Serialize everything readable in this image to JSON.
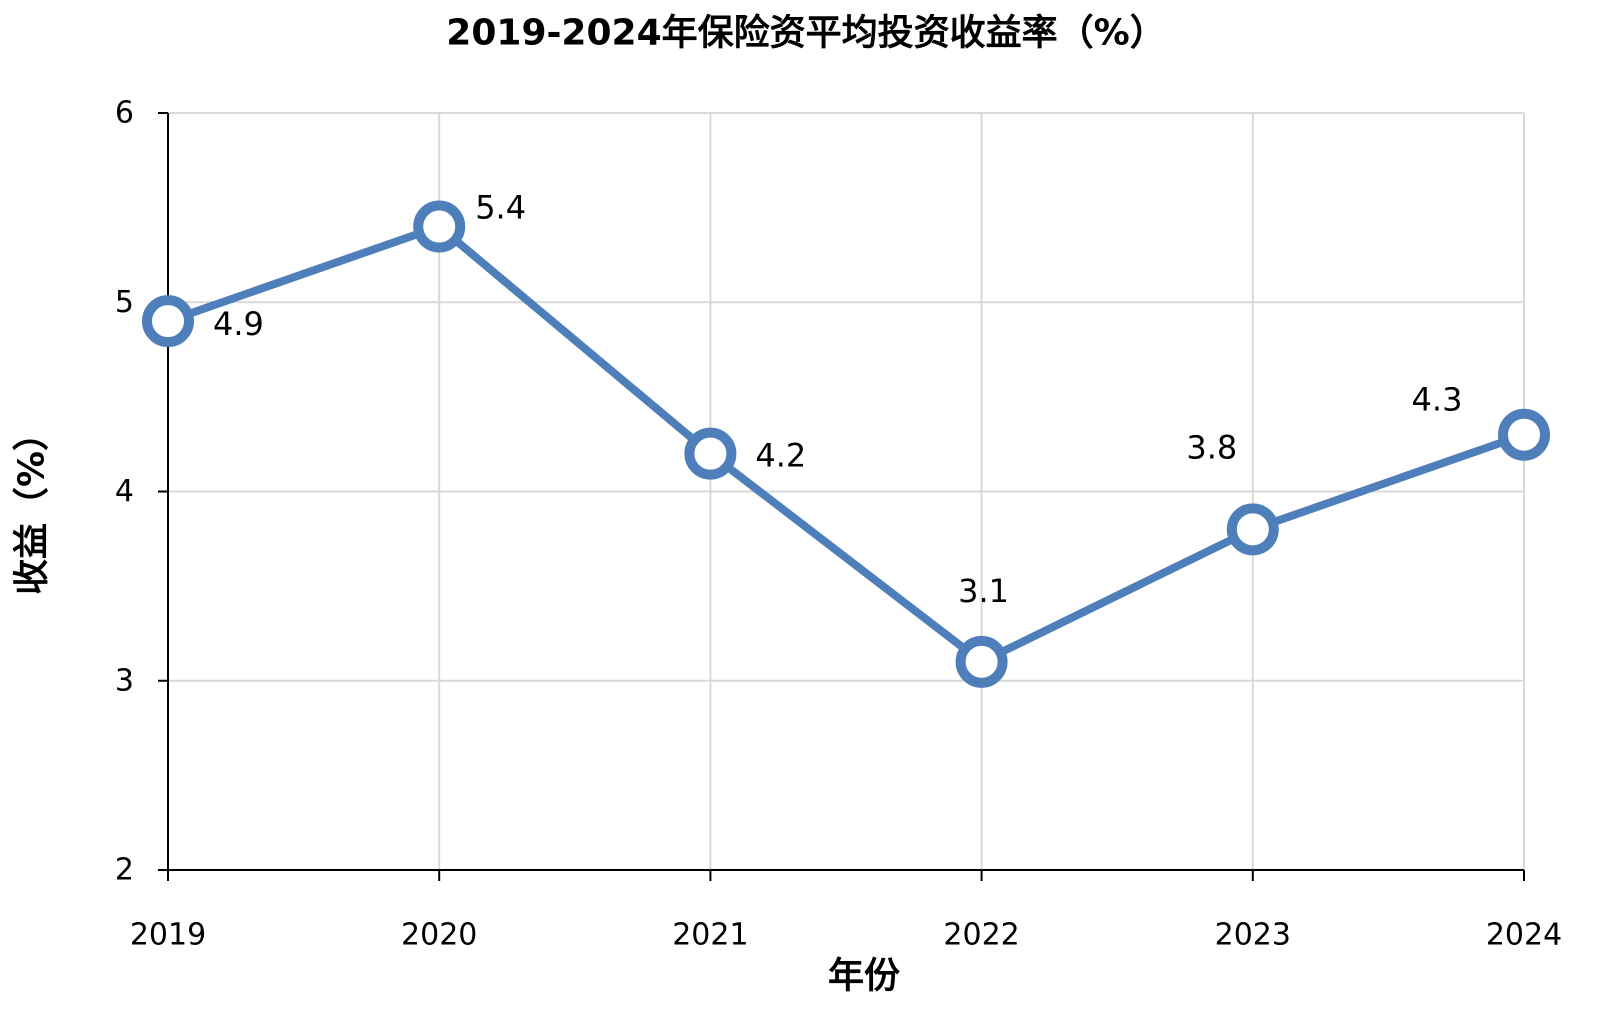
{
  "chart_data": {
    "type": "line",
    "title": "2019-2024年保险资平均投资收益率（%）",
    "xlabel": "年份",
    "ylabel": "收益（%）",
    "categories": [
      "2019",
      "2020",
      "2021",
      "2022",
      "2023",
      "2024"
    ],
    "series": [
      {
        "values": [
          4.9,
          5.4,
          4.2,
          3.1,
          3.8,
          4.3
        ]
      }
    ],
    "ylim": [
      2,
      6
    ],
    "yticks": [
      2,
      3,
      4,
      5,
      6
    ],
    "grid": true,
    "show_legend": false,
    "show_data_labels": true,
    "markers": true,
    "colors": {
      "line": "#4F7FBA",
      "marker_fill": "#FFFFFF",
      "grid": "#D9D9D9",
      "axis": "#000000",
      "text": "#000000"
    }
  }
}
